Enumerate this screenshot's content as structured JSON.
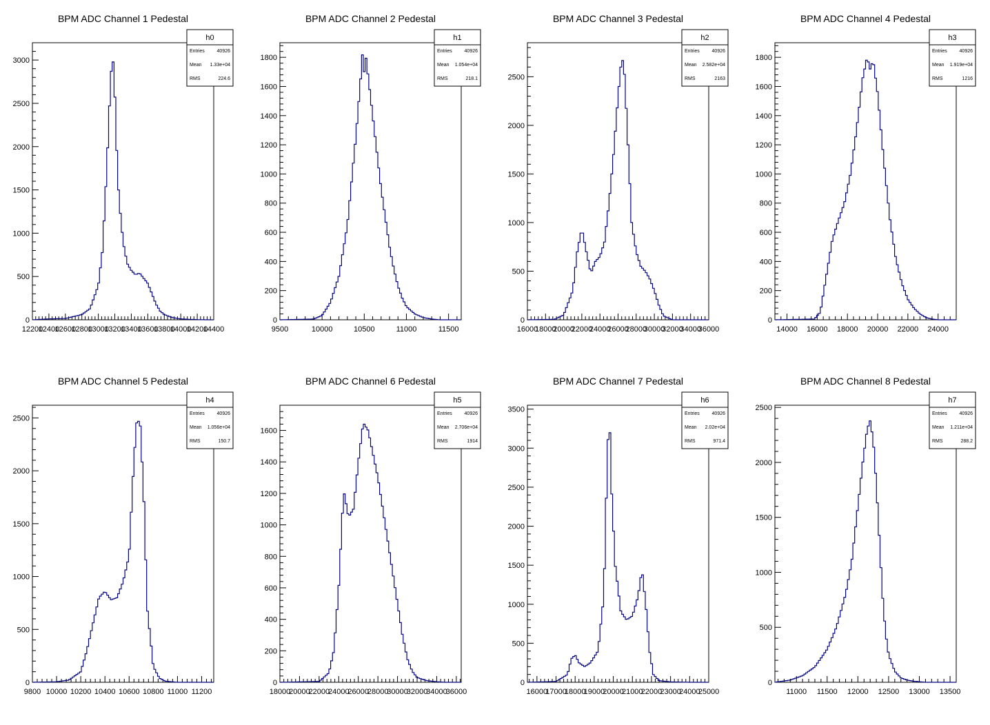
{
  "chart_data": [
    {
      "type": "histogram",
      "title": "BPM ADC Channel 1 Pedestal",
      "stats": {
        "name": "h0",
        "entries_label": "Entries",
        "entries": "40926",
        "mean_label": "Mean",
        "mean": "1.33e+04",
        "rms_label": "RMS",
        "rms": "224.6"
      },
      "xlim": [
        12200,
        14400
      ],
      "ylim": [
        0,
        3200
      ],
      "xticks": [
        12200,
        12400,
        12600,
        12800,
        13000,
        13200,
        13400,
        13600,
        13800,
        14000,
        14200,
        14400
      ],
      "yticks": [
        0,
        500,
        1000,
        1500,
        2000,
        2500,
        3000
      ],
      "x": [
        12200,
        12400,
        12600,
        12800,
        12900,
        13000,
        13050,
        13100,
        13150,
        13175,
        13200,
        13225,
        13250,
        13300,
        13350,
        13400,
        13450,
        13500,
        13550,
        13600,
        13650,
        13700,
        13750,
        13800,
        13900,
        14000,
        14100,
        14200,
        14300
      ],
      "y": [
        0,
        10,
        15,
        60,
        130,
        400,
        800,
        1700,
        2800,
        3050,
        2600,
        1900,
        1400,
        900,
        650,
        570,
        520,
        540,
        480,
        420,
        300,
        180,
        100,
        60,
        25,
        10,
        5,
        2,
        0
      ]
    },
    {
      "type": "histogram",
      "title": "BPM ADC Channel 2 Pedestal",
      "stats": {
        "name": "h1",
        "entries_label": "Entries",
        "entries": "40926",
        "mean_label": "Mean",
        "mean": "1.054e+04",
        "rms_label": "RMS",
        "rms": "218.1"
      },
      "xlim": [
        9500,
        11650
      ],
      "ylim": [
        0,
        1900
      ],
      "xticks": [
        9500,
        10000,
        10500,
        11000,
        11500
      ],
      "yticks": [
        0,
        200,
        400,
        600,
        800,
        1000,
        1200,
        1400,
        1600,
        1800
      ],
      "x": [
        9500,
        9900,
        10000,
        10100,
        10200,
        10300,
        10400,
        10450,
        10480,
        10500,
        10520,
        10550,
        10600,
        10650,
        10700,
        10750,
        10800,
        10850,
        10900,
        10950,
        11000,
        11100,
        11200,
        11300,
        11400
      ],
      "y": [
        0,
        5,
        30,
        120,
        300,
        650,
        1250,
        1600,
        1830,
        1700,
        1800,
        1650,
        1400,
        1150,
        900,
        700,
        500,
        350,
        230,
        150,
        90,
        40,
        15,
        5,
        0
      ]
    },
    {
      "type": "histogram",
      "title": "BPM ADC Channel 3 Pedestal",
      "stats": {
        "name": "h2",
        "entries_label": "Entries",
        "entries": "40926",
        "mean_label": "Mean",
        "mean": "2.582e+04",
        "rms_label": "RMS",
        "rms": "2163"
      },
      "xlim": [
        16000,
        36000
      ],
      "ylim": [
        0,
        2850
      ],
      "xticks": [
        16000,
        18000,
        20000,
        22000,
        24000,
        26000,
        28000,
        30000,
        32000,
        34000,
        36000
      ],
      "yticks": [
        0,
        500,
        1000,
        1500,
        2000,
        2500
      ],
      "x": [
        16000,
        19000,
        20000,
        21000,
        21500,
        22000,
        22500,
        23000,
        23500,
        24000,
        24500,
        25000,
        25500,
        26000,
        26300,
        26600,
        27000,
        27500,
        28000,
        28500,
        29000,
        29500,
        30000,
        30500,
        31000,
        32000
      ],
      "y": [
        0,
        5,
        50,
        300,
        700,
        940,
        700,
        480,
        600,
        650,
        800,
        1200,
        1700,
        2300,
        2600,
        2700,
        2000,
        1000,
        700,
        550,
        500,
        420,
        300,
        150,
        40,
        0
      ]
    },
    {
      "type": "histogram",
      "title": "BPM ADC Channel 4 Pedestal",
      "stats": {
        "name": "h3",
        "entries_label": "Entries",
        "entries": "40926",
        "mean_label": "Mean",
        "mean": "1.919e+04",
        "rms_label": "RMS",
        "rms": "1216"
      },
      "xlim": [
        13200,
        25200
      ],
      "ylim": [
        0,
        1900
      ],
      "xticks": [
        14000,
        16000,
        18000,
        20000,
        22000,
        24000
      ],
      "yticks": [
        0,
        200,
        400,
        600,
        800,
        1000,
        1200,
        1400,
        1600,
        1800
      ],
      "x": [
        13200,
        15800,
        16200,
        16600,
        17000,
        17400,
        17800,
        18200,
        18600,
        19000,
        19300,
        19500,
        19700,
        20000,
        20400,
        20800,
        21200,
        21600,
        22000,
        22400,
        22800,
        23200,
        23600,
        24000
      ],
      "y": [
        0,
        5,
        50,
        300,
        550,
        680,
        800,
        1000,
        1300,
        1650,
        1800,
        1720,
        1780,
        1550,
        1100,
        700,
        420,
        250,
        140,
        80,
        40,
        15,
        5,
        0
      ]
    },
    {
      "type": "histogram",
      "title": "BPM ADC Channel 5 Pedestal",
      "stats": {
        "name": "h4",
        "entries_label": "Entries",
        "entries": "40926",
        "mean_label": "Mean",
        "mean": "1.056e+04",
        "rms_label": "RMS",
        "rms": "150.7"
      },
      "xlim": [
        9800,
        11300
      ],
      "ylim": [
        0,
        2620
      ],
      "xticks": [
        9800,
        10000,
        10200,
        10400,
        10600,
        10800,
        11000,
        11200
      ],
      "yticks": [
        0,
        500,
        1000,
        1500,
        2000,
        2500
      ],
      "x": [
        9800,
        10000,
        10100,
        10200,
        10250,
        10300,
        10350,
        10400,
        10450,
        10500,
        10550,
        10600,
        10630,
        10660,
        10690,
        10720,
        10750,
        10800,
        10850,
        10900,
        11000
      ],
      "y": [
        0,
        5,
        20,
        100,
        300,
        550,
        800,
        860,
        780,
        800,
        950,
        1200,
        1900,
        2450,
        2480,
        1800,
        700,
        150,
        40,
        10,
        0
      ]
    },
    {
      "type": "histogram",
      "title": "BPM ADC Channel 6 Pedestal",
      "stats": {
        "name": "h5",
        "entries_label": "Entries",
        "entries": "40926",
        "mean_label": "Mean",
        "mean": "2.706e+04",
        "rms_label": "RMS",
        "rms": "1914"
      },
      "xlim": [
        18000,
        36500
      ],
      "ylim": [
        0,
        1760
      ],
      "xticks": [
        18000,
        20000,
        22000,
        24000,
        26000,
        28000,
        30000,
        32000,
        34000,
        36000
      ],
      "yticks": [
        0,
        200,
        400,
        600,
        800,
        1000,
        1200,
        1400,
        1600
      ],
      "x": [
        18000,
        22000,
        23000,
        23500,
        24000,
        24500,
        25000,
        25500,
        26000,
        26500,
        27000,
        27500,
        28000,
        28500,
        29000,
        29500,
        30000,
        30500,
        31000,
        31500,
        32000,
        33000,
        34000,
        35000
      ],
      "y": [
        0,
        5,
        60,
        200,
        600,
        1220,
        1050,
        1100,
        1400,
        1650,
        1600,
        1450,
        1300,
        1100,
        900,
        700,
        500,
        300,
        150,
        70,
        30,
        10,
        3,
        0
      ]
    },
    {
      "type": "histogram",
      "title": "BPM ADC Channel 7 Pedestal",
      "stats": {
        "name": "h6",
        "entries_label": "Entries",
        "entries": "40926",
        "mean_label": "Mean",
        "mean": "2.02e+04",
        "rms_label": "RMS",
        "rms": "971.4"
      },
      "xlim": [
        15500,
        25000
      ],
      "ylim": [
        0,
        3550
      ],
      "xticks": [
        16000,
        17000,
        18000,
        19000,
        20000,
        21000,
        22000,
        23000,
        24000,
        25000
      ],
      "yticks": [
        0,
        500,
        1000,
        1500,
        2000,
        2500,
        3000,
        3500
      ],
      "x": [
        15500,
        17000,
        17600,
        17800,
        18000,
        18200,
        18500,
        18800,
        19200,
        19500,
        19700,
        19800,
        19900,
        20100,
        20400,
        20700,
        21000,
        21300,
        21500,
        21700,
        21900,
        22100,
        22400,
        23000,
        24000
      ],
      "y": [
        0,
        10,
        100,
        300,
        350,
        250,
        200,
        250,
        400,
        1100,
        3000,
        3400,
        2500,
        1500,
        900,
        800,
        850,
        1100,
        1450,
        1000,
        400,
        100,
        20,
        5,
        0
      ]
    },
    {
      "type": "histogram",
      "title": "BPM ADC Channel 8 Pedestal",
      "stats": {
        "name": "h7",
        "entries_label": "Entries",
        "entries": "40926",
        "mean_label": "Mean",
        "mean": "1.211e+04",
        "rms_label": "RMS",
        "rms": "288.2"
      },
      "xlim": [
        10650,
        13600
      ],
      "ylim": [
        0,
        2520
      ],
      "xticks": [
        11000,
        11500,
        12000,
        12500,
        13000,
        13500
      ],
      "yticks": [
        0,
        500,
        1000,
        1500,
        2000,
        2500
      ],
      "x": [
        10650,
        10900,
        11100,
        11300,
        11500,
        11650,
        11800,
        11900,
        12000,
        12080,
        12150,
        12200,
        12250,
        12300,
        12350,
        12400,
        12450,
        12500,
        12600,
        12700,
        12800,
        12900,
        13000,
        13100
      ],
      "y": [
        0,
        20,
        60,
        140,
        300,
        500,
        800,
        1100,
        1600,
        2000,
        2300,
        2380,
        2200,
        1800,
        1300,
        800,
        450,
        250,
        100,
        40,
        20,
        10,
        5,
        0
      ]
    }
  ]
}
